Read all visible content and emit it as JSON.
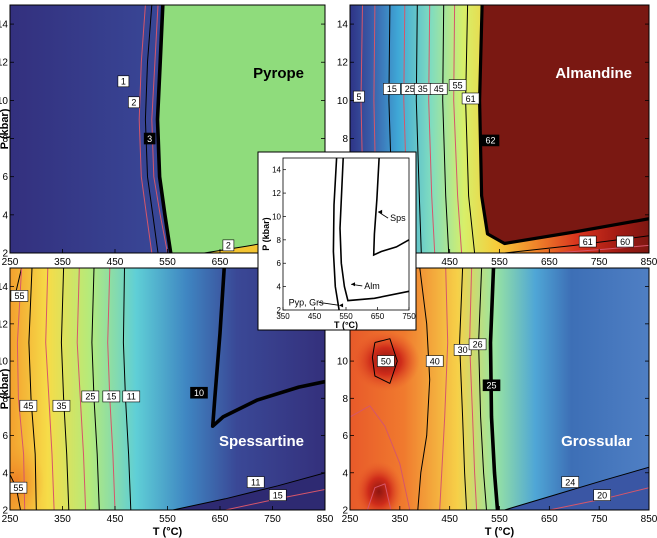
{
  "chart_data": {
    "type": "heatmap",
    "x_label": "T (°C)",
    "y_label": "P (kbar)",
    "x_ticks": [
      "250",
      "350",
      "450",
      "550",
      "650",
      "750",
      "850"
    ],
    "y_ticks": [
      "2",
      "4",
      "6",
      "8",
      "10",
      "12",
      "14"
    ],
    "xlim": [
      250,
      850
    ],
    "ylim": [
      2,
      15
    ],
    "panels": [
      {
        "name": "Pyrope",
        "labels": [
          {
            "text": "1",
            "T": 466,
            "P": 11.0,
            "bold": false
          },
          {
            "text": "2",
            "T": 486,
            "P": 9.9,
            "bold": false
          },
          {
            "text": "3",
            "T": 516,
            "P": 8.0,
            "bold": true
          },
          {
            "text": "2",
            "T": 666,
            "P": 2.4,
            "bold": false
          }
        ]
      },
      {
        "name": "Almandine",
        "labels": [
          {
            "text": "5",
            "T": 268,
            "P": 10.2,
            "bold": false
          },
          {
            "text": "15",
            "T": 334,
            "P": 10.6,
            "bold": false
          },
          {
            "text": "25",
            "T": 370,
            "P": 10.6,
            "bold": false
          },
          {
            "text": "35",
            "T": 396,
            "P": 10.6,
            "bold": false
          },
          {
            "text": "45",
            "T": 428,
            "P": 10.6,
            "bold": false
          },
          {
            "text": "55",
            "T": 466,
            "P": 10.8,
            "bold": false
          },
          {
            "text": "61",
            "T": 492,
            "P": 10.1,
            "bold": false
          },
          {
            "text": "62",
            "T": 532,
            "P": 7.9,
            "bold": true
          },
          {
            "text": "61",
            "T": 727,
            "P": 2.6,
            "bold": false
          },
          {
            "text": "60",
            "T": 802,
            "P": 2.6,
            "bold": false
          }
        ]
      },
      {
        "name": "Spessartine",
        "labels": [
          {
            "text": "55",
            "T": 268,
            "P": 13.5,
            "bold": false
          },
          {
            "text": "45",
            "T": 285,
            "P": 7.6,
            "bold": false
          },
          {
            "text": "35",
            "T": 348,
            "P": 7.6,
            "bold": false
          },
          {
            "text": "25",
            "T": 403,
            "P": 8.1,
            "bold": false
          },
          {
            "text": "15",
            "T": 443,
            "P": 8.1,
            "bold": false
          },
          {
            "text": "11",
            "T": 481,
            "P": 8.1,
            "bold": false
          },
          {
            "text": "10",
            "T": 610,
            "P": 8.3,
            "bold": true
          },
          {
            "text": "55",
            "T": 266,
            "P": 3.2,
            "bold": false
          },
          {
            "text": "11",
            "T": 718,
            "P": 3.5,
            "bold": false
          },
          {
            "text": "15",
            "T": 760,
            "P": 2.8,
            "bold": false
          }
        ]
      },
      {
        "name": "Grossular",
        "labels": [
          {
            "text": "50",
            "T": 322,
            "P": 10.0,
            "bold": false
          },
          {
            "text": "40",
            "T": 420,
            "P": 10.0,
            "bold": false
          },
          {
            "text": "30",
            "T": 476,
            "P": 10.6,
            "bold": false
          },
          {
            "text": "26",
            "T": 506,
            "P": 10.9,
            "bold": false
          },
          {
            "text": "25",
            "T": 534,
            "P": 8.7,
            "bold": true
          },
          {
            "text": "24",
            "T": 692,
            "P": 3.5,
            "bold": false
          },
          {
            "text": "20",
            "T": 756,
            "P": 2.8,
            "bold": false
          }
        ]
      }
    ],
    "inset": {
      "x_label": "T (°C)",
      "y_label": "P (kbar)",
      "x_ticks": [
        "350",
        "450",
        "550",
        "650",
        "750"
      ],
      "y_ticks": [
        "2",
        "4",
        "6",
        "8",
        "10",
        "12",
        "14"
      ],
      "labels": [
        "Sps",
        "Alm",
        "Pyp, Grs"
      ]
    }
  }
}
